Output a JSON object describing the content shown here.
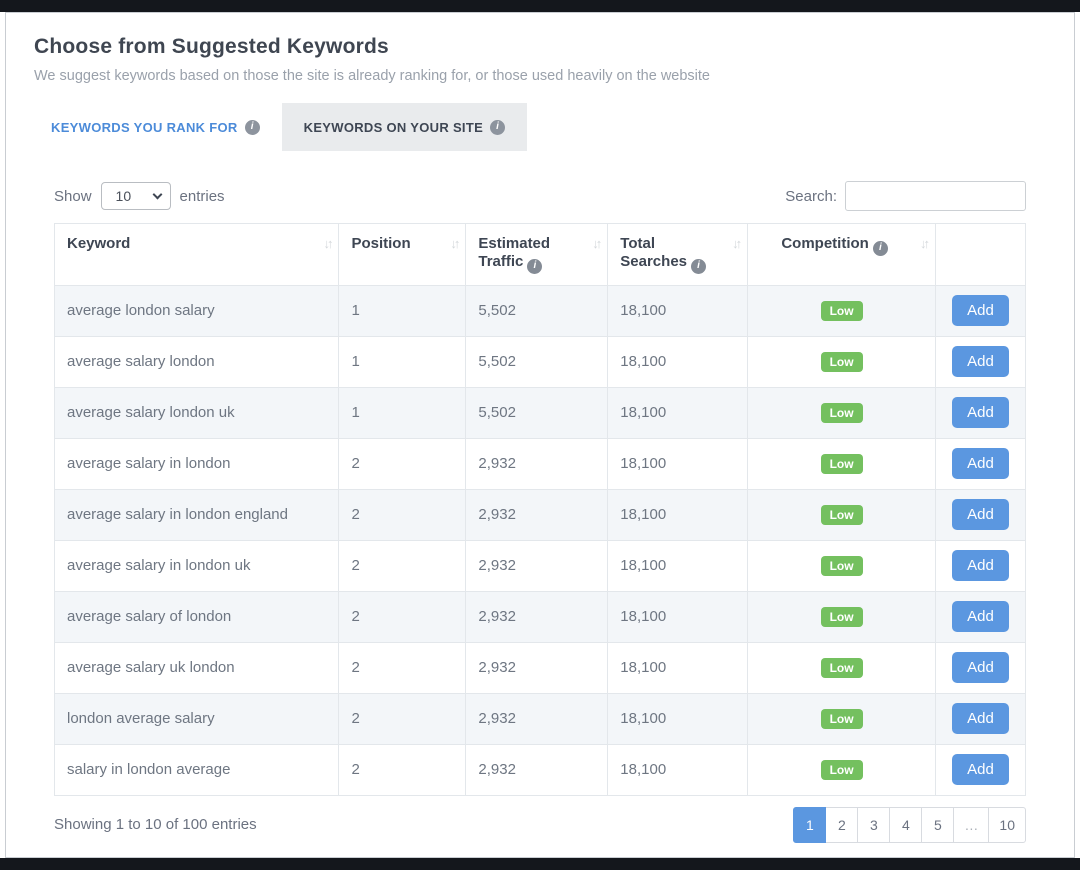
{
  "page": {
    "title": "Choose from Suggested Keywords",
    "subtitle": "We suggest keywords based on those the site is already ranking for, or those used heavily on the website"
  },
  "icons": {
    "info": "i",
    "sort": "↓↑"
  },
  "colors": {
    "accent_blue": "#5b97e0",
    "tab_link_blue": "#4c8bd9",
    "badge_green": "#74c05f",
    "dark_edge_bar": "#14171c"
  },
  "tabs": [
    {
      "label": "KEYWORDS YOU RANK FOR",
      "active": false,
      "has_info": true
    },
    {
      "label": "KEYWORDS ON YOUR SITE",
      "active": true,
      "has_info": true
    }
  ],
  "controls": {
    "show_label": "Show",
    "page_size": "10",
    "entries_label": "entries",
    "search_label": "Search:",
    "search_value": ""
  },
  "table": {
    "headers": [
      {
        "label": "Keyword",
        "info": false,
        "sortable": true
      },
      {
        "label": "Position",
        "info": false,
        "sortable": true
      },
      {
        "label": "Estimated Traffic",
        "info": true,
        "sortable": true
      },
      {
        "label": "Total Searches",
        "info": true,
        "sortable": true
      },
      {
        "label": "Competition",
        "info": true,
        "sortable": true
      },
      {
        "label": "",
        "info": false,
        "sortable": false
      }
    ],
    "rows": [
      {
        "keyword": "average london salary",
        "position": "1",
        "traffic": "5,502",
        "searches": "18,100",
        "competition": "Low",
        "action": "Add"
      },
      {
        "keyword": "average salary london",
        "position": "1",
        "traffic": "5,502",
        "searches": "18,100",
        "competition": "Low",
        "action": "Add"
      },
      {
        "keyword": "average salary london uk",
        "position": "1",
        "traffic": "5,502",
        "searches": "18,100",
        "competition": "Low",
        "action": "Add"
      },
      {
        "keyword": "average salary in london",
        "position": "2",
        "traffic": "2,932",
        "searches": "18,100",
        "competition": "Low",
        "action": "Add"
      },
      {
        "keyword": "average salary in london england",
        "position": "2",
        "traffic": "2,932",
        "searches": "18,100",
        "competition": "Low",
        "action": "Add"
      },
      {
        "keyword": "average salary in london uk",
        "position": "2",
        "traffic": "2,932",
        "searches": "18,100",
        "competition": "Low",
        "action": "Add"
      },
      {
        "keyword": "average salary of london",
        "position": "2",
        "traffic": "2,932",
        "searches": "18,100",
        "competition": "Low",
        "action": "Add"
      },
      {
        "keyword": "average salary uk london",
        "position": "2",
        "traffic": "2,932",
        "searches": "18,100",
        "competition": "Low",
        "action": "Add"
      },
      {
        "keyword": "london average salary",
        "position": "2",
        "traffic": "2,932",
        "searches": "18,100",
        "competition": "Low",
        "action": "Add"
      },
      {
        "keyword": "salary in london average",
        "position": "2",
        "traffic": "2,932",
        "searches": "18,100",
        "competition": "Low",
        "action": "Add"
      }
    ]
  },
  "footer": {
    "showing_text": "Showing 1 to 10 of 100 entries",
    "pages": [
      "1",
      "2",
      "3",
      "4",
      "5",
      "…",
      "10"
    ],
    "active_page": "1"
  }
}
